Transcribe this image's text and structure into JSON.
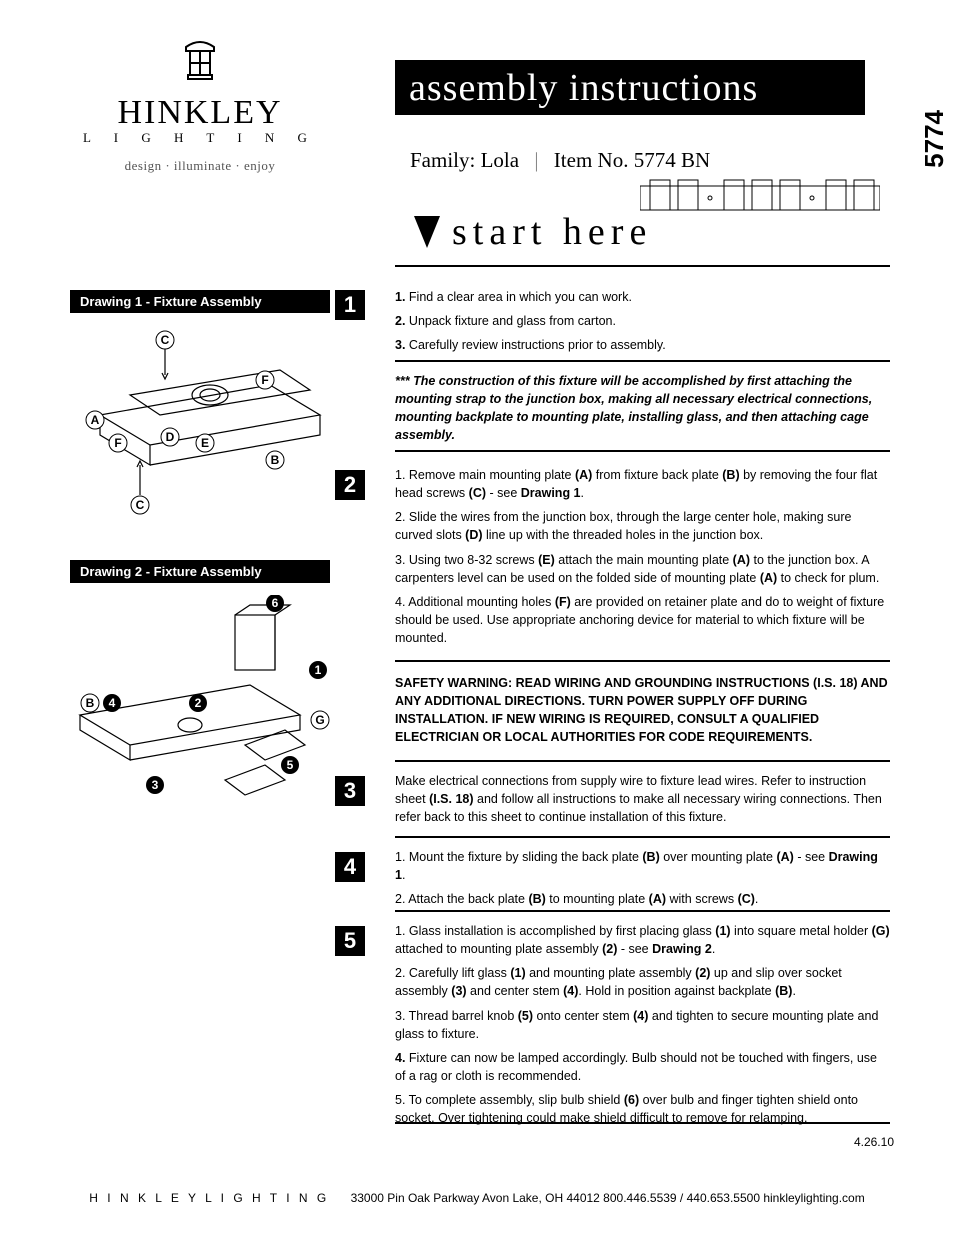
{
  "brand": {
    "name": "HINKLEY",
    "sub": "L I G H T I N G",
    "tagline": "design · illuminate · enjoy"
  },
  "title": "assembly instructions",
  "model_no": "5774",
  "family_label": "Family:",
  "family_value": "Lola",
  "item_label": "Item No.",
  "item_value": "5774 BN",
  "start": "start here",
  "drawing1_label": "Drawing 1 - Fixture Assembly",
  "drawing2_label": "Drawing 2 - Fixture Assembly",
  "step1": {
    "l1": "1. Find a clear area in which you can work.",
    "l2": "2. Unpack fixture and glass from carton.",
    "l3": "3. Carefully review instructions prior to assembly."
  },
  "note": "*** The construction of this fixture will be accomplished by first attaching the mounting strap to the junction box, making all necessary electrical connections, mounting backplate to mounting plate, installing glass, and then attaching cage assembly.",
  "step2": {
    "l1a": "1. Remove main mounting plate ",
    "l1b": "(A)",
    "l1c": " from fixture back plate ",
    "l1d": "(B)",
    "l1e": " by removing the four flat head screws ",
    "l1f": "(C)",
    "l1g": " - see ",
    "l1h": "Drawing 1",
    "l1i": ".",
    "l2a": "2. Slide the wires from the junction box, through the large center hole, making sure curved slots ",
    "l2b": "(D)",
    "l2c": " line up with the threaded holes in the junction box.",
    "l3a": "3. Using two 8-32 screws ",
    "l3b": "(E)",
    "l3c": " attach the main mounting plate ",
    "l3d": "(A)",
    "l3e": " to the junction box. A carpenters level can be used on the folded side of mounting plate ",
    "l3f": "(A)",
    "l3g": " to check for plum.",
    "l4a": "4. Additional mounting holes ",
    "l4b": "(F)",
    "l4c": " are provided on retainer plate and do to weight of fixture should be used. Use appropriate anchoring device for material to which fixture will be mounted."
  },
  "safety": "SAFETY WARNING: READ WIRING AND GROUNDING INSTRUCTIONS (I.S. 18) AND ANY ADDITIONAL DIRECTIONS. TURN POWER SUPPLY OFF DURING INSTALLATION. IF NEW WIRING IS REQUIRED, CONSULT A QUALIFIED ELECTRICIAN OR LOCAL AUTHORITIES FOR CODE REQUIREMENTS.",
  "step3": {
    "l1a": "Make electrical connections from supply wire to fixture lead wires. Refer to instruction sheet ",
    "l1b": "(I.S. 18)",
    "l1c": " and follow all instructions to make all necessary wiring connections. Then refer back to this sheet to continue installation of this fixture."
  },
  "step4": {
    "l1a": "1. Mount the fixture by sliding the back plate ",
    "l1b": "(B)",
    "l1c": " over mounting plate ",
    "l1d": "(A)",
    "l1e": " - see ",
    "l1f": "Drawing 1",
    "l1g": ".",
    "l2a": "2. Attach the back plate ",
    "l2b": "(B)",
    "l2c": " to mounting plate ",
    "l2d": "(A)",
    "l2e": " with screws ",
    "l2f": "(C)",
    "l2g": "."
  },
  "step5": {
    "l1a": "1. Glass installation is accomplished by first placing glass ",
    "l1b": "(1)",
    "l1c": " into square metal holder ",
    "l1d": "(G)",
    "l1e": " attached to mounting plate assembly ",
    "l1f": "(2)",
    "l1g": " - see ",
    "l1h": "Drawing 2",
    "l1i": ".",
    "l2a": "2. Carefully lift glass ",
    "l2b": "(1)",
    "l2c": " and mounting plate assembly ",
    "l2d": "(2)",
    "l2e": " up and slip over socket assembly ",
    "l2f": "(3)",
    "l2g": " and center stem ",
    "l2h": "(4)",
    "l2i": ". Hold in position against backplate ",
    "l2j": "(B)",
    "l2k": ".",
    "l3a": "3. Thread barrel knob ",
    "l3b": "(5)",
    "l3c": " onto center stem ",
    "l3d": "(4)",
    "l3e": " and tighten to secure mounting plate and glass to fixture.",
    "l4": "4. Fixture can now be lamped accordingly. Bulb should not be touched with fingers, use of a rag or cloth is recommended.",
    "l5a": "5. To complete assembly, slip bulb shield ",
    "l5b": "(6)",
    "l5c": " over bulb and finger tighten shield onto socket. Over tightening could make shield difficult to remove for relamping."
  },
  "date": "4.26.10",
  "footer": {
    "brand": "H I N K L E Y   L I G H T I N G",
    "rest": "33000 Pin Oak Parkway   Avon Lake, OH 44012     800.446.5539 / 440.653.5500     hinkleylighting.com"
  },
  "colors": {
    "ink": "#000000",
    "paper": "#ffffff"
  }
}
